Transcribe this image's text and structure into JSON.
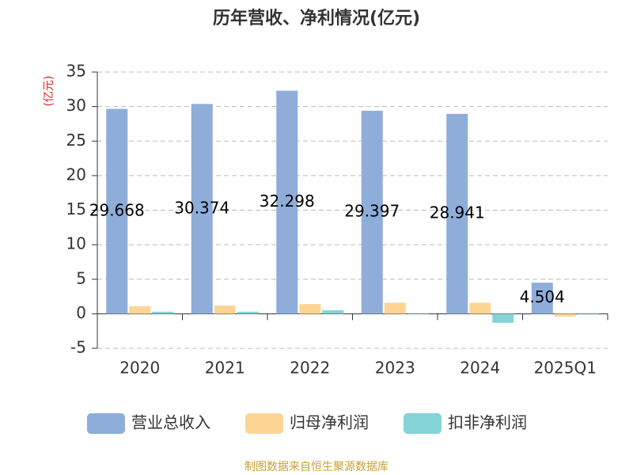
{
  "chart_data": {
    "type": "bar",
    "title": "历年营收、净利情况(亿元)",
    "y_label": "(亿元)",
    "categories": [
      "2020",
      "2021",
      "2022",
      "2023",
      "2024",
      "2025Q1"
    ],
    "series": [
      {
        "name": "营业总收入",
        "color": "#8eadd9",
        "values": [
          29.668,
          30.374,
          32.298,
          29.397,
          28.941,
          4.504
        ],
        "show_labels": true
      },
      {
        "name": "归母净利润",
        "color": "#fcd595",
        "values": [
          1.1,
          1.2,
          1.4,
          1.6,
          1.6,
          -0.4
        ]
      },
      {
        "name": "扣非净利润",
        "color": "#84d3d6",
        "values": [
          0.3,
          0.3,
          0.5,
          0.05,
          -1.3,
          -0.1
        ]
      }
    ],
    "ylim": [
      -5,
      35
    ],
    "yticks": [
      -5,
      0,
      5,
      10,
      15,
      20,
      25,
      30,
      35
    ],
    "grid": true,
    "source": "制图数据来自恒生聚源数据库"
  }
}
